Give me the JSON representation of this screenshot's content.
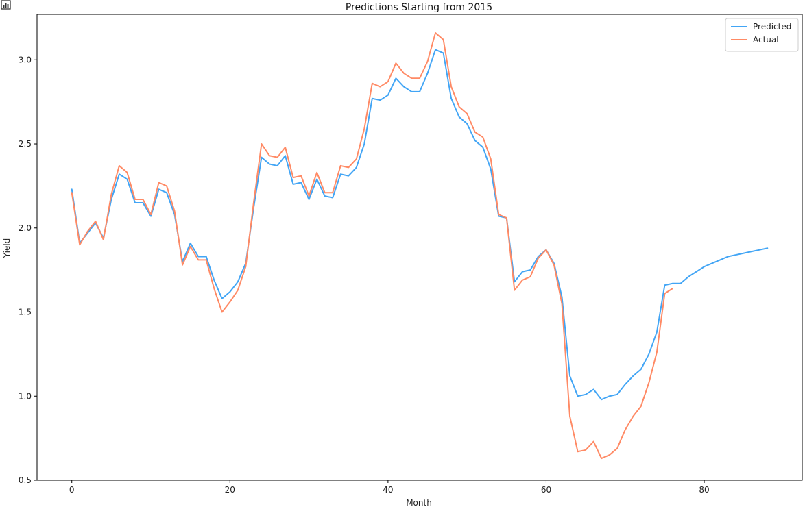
{
  "app_icon": "chart-icon",
  "colors": {
    "predicted": "#42A5F5",
    "actual": "#FF8A65",
    "axis": "#000000"
  },
  "chart_data": {
    "type": "line",
    "title": "Predictions Starting from 2015",
    "xlabel": "Month",
    "ylabel": "Yield",
    "xlim": [
      -4.4,
      92.4
    ],
    "ylim": [
      0.5,
      3.27
    ],
    "xticks": [
      0,
      20,
      40,
      60,
      80
    ],
    "yticks": [
      0.5,
      1.0,
      1.5,
      2.0,
      2.5,
      3.0
    ],
    "legend_position": "top-right",
    "grid": false,
    "series": [
      {
        "name": "Predicted",
        "color": "#42A5F5",
        "x": [
          0,
          1,
          2,
          3,
          4,
          5,
          6,
          7,
          8,
          9,
          10,
          11,
          12,
          13,
          14,
          15,
          16,
          17,
          18,
          19,
          20,
          21,
          22,
          23,
          24,
          25,
          26,
          27,
          28,
          29,
          30,
          31,
          32,
          33,
          34,
          35,
          36,
          37,
          38,
          39,
          40,
          41,
          42,
          43,
          44,
          45,
          46,
          47,
          48,
          49,
          50,
          51,
          52,
          53,
          54,
          55,
          56,
          57,
          58,
          59,
          60,
          61,
          62,
          63,
          64,
          65,
          66,
          67,
          68,
          69,
          70,
          71,
          72,
          73,
          74,
          75,
          76,
          77,
          78,
          79,
          80,
          81,
          82,
          83,
          84,
          85,
          86,
          87,
          88
        ],
        "values": [
          2.23,
          1.91,
          1.97,
          2.03,
          1.94,
          2.17,
          2.32,
          2.29,
          2.15,
          2.15,
          2.07,
          2.23,
          2.21,
          2.08,
          1.8,
          1.91,
          1.83,
          1.83,
          1.69,
          1.58,
          1.62,
          1.68,
          1.79,
          2.12,
          2.42,
          2.38,
          2.37,
          2.43,
          2.26,
          2.27,
          2.17,
          2.29,
          2.19,
          2.18,
          2.32,
          2.31,
          2.36,
          2.5,
          2.77,
          2.76,
          2.79,
          2.89,
          2.84,
          2.81,
          2.81,
          2.92,
          3.06,
          3.04,
          2.77,
          2.66,
          2.62,
          2.52,
          2.48,
          2.35,
          2.07,
          2.06,
          1.68,
          1.74,
          1.75,
          1.83,
          1.87,
          1.79,
          1.59,
          1.12,
          1.0,
          1.01,
          1.04,
          0.98,
          1.0,
          1.01,
          1.07,
          1.12,
          1.16,
          1.25,
          1.38,
          1.66,
          1.67,
          1.67,
          1.71,
          1.74,
          1.77,
          1.79,
          1.81,
          1.83,
          1.84,
          1.85,
          1.86,
          1.87,
          1.88
        ]
      },
      {
        "name": "Actual",
        "color": "#FF8A65",
        "x": [
          0,
          1,
          2,
          3,
          4,
          5,
          6,
          7,
          8,
          9,
          10,
          11,
          12,
          13,
          14,
          15,
          16,
          17,
          18,
          19,
          20,
          21,
          22,
          23,
          24,
          25,
          26,
          27,
          28,
          29,
          30,
          31,
          32,
          33,
          34,
          35,
          36,
          37,
          38,
          39,
          40,
          41,
          42,
          43,
          44,
          45,
          46,
          47,
          48,
          49,
          50,
          51,
          52,
          53,
          54,
          55,
          56,
          57,
          58,
          59,
          60,
          61,
          62,
          63,
          64,
          65,
          66,
          67,
          68,
          69,
          70,
          71,
          72,
          73,
          74,
          75,
          76
        ],
        "values": [
          2.21,
          1.9,
          1.98,
          2.04,
          1.93,
          2.2,
          2.37,
          2.33,
          2.17,
          2.17,
          2.08,
          2.27,
          2.25,
          2.1,
          1.78,
          1.89,
          1.81,
          1.81,
          1.64,
          1.5,
          1.56,
          1.63,
          1.77,
          2.15,
          2.5,
          2.43,
          2.42,
          2.48,
          2.3,
          2.31,
          2.19,
          2.33,
          2.21,
          2.21,
          2.37,
          2.36,
          2.41,
          2.59,
          2.86,
          2.84,
          2.87,
          2.98,
          2.92,
          2.89,
          2.89,
          2.99,
          3.16,
          3.12,
          2.84,
          2.72,
          2.68,
          2.57,
          2.54,
          2.41,
          2.08,
          2.06,
          1.63,
          1.69,
          1.71,
          1.82,
          1.87,
          1.78,
          1.55,
          0.88,
          0.67,
          0.68,
          0.73,
          0.63,
          0.65,
          0.69,
          0.8,
          0.88,
          0.94,
          1.08,
          1.26,
          1.61,
          1.64
        ]
      }
    ]
  }
}
